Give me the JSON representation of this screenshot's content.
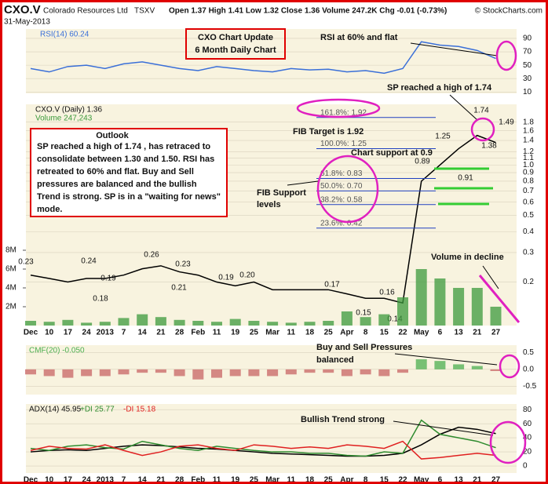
{
  "header": {
    "symbol": "CXO.V",
    "name": "Colorado Resources Ltd",
    "exchange": "TSXV",
    "date": "31-May-2013",
    "quote": "Open 1.37  High 1.41  Low 1.32  Close 1.36  Volume 247.2K  Chg -0.01 (-0.73%)",
    "credit": "© StockCharts.com"
  },
  "annotations": {
    "update_title": "CXO Chart Update",
    "update_subtitle": "6 Month Daily Chart",
    "rsi_note": "RSI at 60% and flat",
    "high_note": "SP reached a high of 1.74",
    "fib_target": "FIB Target is 1.92",
    "support_note": "Chart support at 0.9",
    "fib_support": [
      "FIB Support",
      "levels"
    ],
    "volume_note": "Volume in decline",
    "pressure_note": [
      "Buy and Sell Pressures",
      "balanced"
    ],
    "trend_note": "Bullish Trend strong",
    "outlook_title": "Outlook",
    "outlook_lines": [
      "SP reached a high of 1.74 , has retraced to",
      "consolidate between 1.30 and 1.50. RSI has",
      "retreated to 60% and flat. Buy and Sell",
      "pressures are balanced and the bullish",
      "Trend is strong. SP is in a \"waiting for news\"",
      "mode."
    ]
  },
  "chart_data": [
    {
      "type": "line",
      "ylim": [
        8,
        104
      ],
      "yticks": [
        10,
        30,
        50,
        70,
        90
      ],
      "grid": true,
      "series": [
        {
          "name": "RSI(14) 60.24",
          "color": "#3a6fd8",
          "values": [
            45,
            40,
            48,
            50,
            45,
            52,
            55,
            50,
            45,
            42,
            48,
            45,
            42,
            40,
            45,
            43,
            44,
            40,
            42,
            38,
            45,
            85,
            80,
            78,
            72,
            60
          ]
        }
      ]
    },
    {
      "type": "line",
      "log_scale": true,
      "ylim": [
        0.11,
        2.3
      ],
      "grid": true,
      "yticks": [
        0.2,
        0.3,
        0.4,
        0.5,
        0.6,
        0.7,
        0.8,
        0.9,
        {
          "value": 1.0,
          "label": "1.0"
        },
        1.1,
        1.2,
        1.4,
        1.6,
        1.8
      ],
      "categories": [
        "Dec",
        "10",
        "17",
        "24",
        "2013",
        "7",
        "14",
        "21",
        "28",
        "Feb",
        "11",
        "19",
        "25",
        "Mar",
        "11",
        "18",
        "25",
        "Apr",
        "8",
        "15",
        "22",
        "May",
        "6",
        "13",
        "21",
        "27"
      ],
      "series": [
        {
          "name": "CXO.V (Daily) 1.36",
          "color": "#000000",
          "values": [
            0.22,
            0.21,
            0.2,
            0.21,
            0.21,
            0.22,
            0.24,
            0.25,
            0.23,
            0.22,
            0.2,
            0.19,
            0.2,
            0.18,
            0.18,
            0.18,
            0.18,
            0.17,
            0.16,
            0.16,
            0.15,
            0.8,
            1.0,
            1.25,
            1.5,
            1.36
          ]
        }
      ],
      "point_labels": [
        {
          "value": 0.23,
          "label": "0.23"
        },
        {
          "value": 0.24,
          "label": "0.24"
        },
        {
          "value": 0.19,
          "label": "0.19"
        },
        {
          "value": 0.18,
          "label": "0.18"
        },
        {
          "value": 0.26,
          "label": "0.26"
        },
        {
          "value": 0.23,
          "label": "0.23"
        },
        {
          "value": 0.21,
          "label": "0.21"
        },
        {
          "value": 0.19,
          "label": "0.19"
        },
        {
          "value": 0.2,
          "label": "0.20"
        },
        {
          "value": 0.17,
          "label": "0.17"
        },
        {
          "value": 0.15,
          "label": "0.15"
        },
        {
          "value": 0.16,
          "label": "0.16"
        },
        {
          "value": 0.14,
          "label": "0.14"
        },
        {
          "value": 0.89,
          "label": "0.89"
        },
        {
          "value": 1.25,
          "label": "1.25"
        },
        {
          "value": 1.74,
          "label": "1.74"
        },
        {
          "value": 1.49,
          "label": "1.49"
        },
        {
          "value": 1.38,
          "label": "1.38"
        },
        {
          "value": 0.91,
          "label": "0.91"
        }
      ],
      "fib_levels": [
        {
          "value": 1.92,
          "label": "161.8%: 1.92"
        },
        {
          "value": 1.25,
          "label": "100.0%: 1.25"
        },
        {
          "value": 0.83,
          "label": "61.8%: 0.83"
        },
        {
          "value": 0.7,
          "label": "50.0%: 0.70"
        },
        {
          "value": 0.58,
          "label": "38.2%: 0.58"
        },
        {
          "value": 0.42,
          "label": "23.6%: 0.42"
        }
      ]
    },
    {
      "type": "bar",
      "ylim": [
        0,
        23500000
      ],
      "yticks": [
        {
          "value": 2000000,
          "label": "2M"
        },
        {
          "value": 4000000,
          "label": "4M"
        },
        {
          "value": 6000000,
          "label": "6M"
        },
        {
          "value": 8000000,
          "label": "8M"
        }
      ],
      "series": [
        {
          "name": "Volume 247,243",
          "color": "#3c9a3c",
          "values": [
            500000,
            400000,
            600000,
            300000,
            400000,
            800000,
            1200000,
            900000,
            600000,
            500000,
            400000,
            700000,
            500000,
            400000,
            300000,
            400000,
            500000,
            1500000,
            900000,
            1200000,
            3000000,
            6000000,
            5000000,
            4000000,
            4000000,
            2000000
          ]
        }
      ]
    },
    {
      "type": "bar",
      "ylim": [
        -0.75,
        0.72
      ],
      "yticks": [
        -0.5,
        {
          "value": 0,
          "label": "0.0"
        },
        0.5
      ],
      "grid": true,
      "series": [
        {
          "name": "CMF(20) -0.050",
          "color": "#4caf50",
          "negative_color": "#c86464",
          "values": [
            -0.15,
            -0.2,
            -0.25,
            -0.2,
            -0.2,
            -0.15,
            -0.1,
            -0.1,
            -0.2,
            -0.3,
            -0.25,
            -0.2,
            -0.2,
            -0.2,
            -0.15,
            -0.1,
            -0.1,
            -0.2,
            -0.15,
            -0.2,
            -0.1,
            0.3,
            0.25,
            0.15,
            0.1,
            -0.05
          ]
        }
      ]
    },
    {
      "type": "line",
      "ylim": [
        -10,
        88
      ],
      "yticks": [
        0,
        20,
        40,
        60,
        80
      ],
      "grid": true,
      "categories": [
        "Dec",
        "10",
        "17",
        "24",
        "2013",
        "7",
        "14",
        "21",
        "28",
        "Feb",
        "11",
        "19",
        "25",
        "Mar",
        "11",
        "18",
        "25",
        "Apr",
        "8",
        "15",
        "22",
        "May",
        "6",
        "13",
        "21",
        "27"
      ],
      "series": [
        {
          "name": "ADX(14) 45.95",
          "color": "#000000",
          "values": [
            20,
            22,
            23,
            22,
            25,
            28,
            30,
            29,
            27,
            25,
            24,
            22,
            20,
            18,
            17,
            16,
            15,
            14,
            14,
            15,
            18,
            30,
            45,
            55,
            52,
            46
          ]
        },
        {
          "name": "+DI 25.77",
          "color": "#2e8b2e",
          "values": [
            25,
            22,
            28,
            30,
            26,
            24,
            35,
            30,
            25,
            22,
            28,
            25,
            22,
            20,
            20,
            18,
            18,
            15,
            14,
            20,
            18,
            65,
            45,
            40,
            35,
            26
          ]
        },
        {
          "name": "-DI 15.18",
          "color": "#e02020",
          "values": [
            22,
            28,
            25,
            24,
            30,
            22,
            15,
            20,
            28,
            30,
            25,
            22,
            30,
            28,
            25,
            27,
            25,
            30,
            28,
            25,
            35,
            10,
            12,
            15,
            18,
            15
          ]
        }
      ]
    }
  ]
}
